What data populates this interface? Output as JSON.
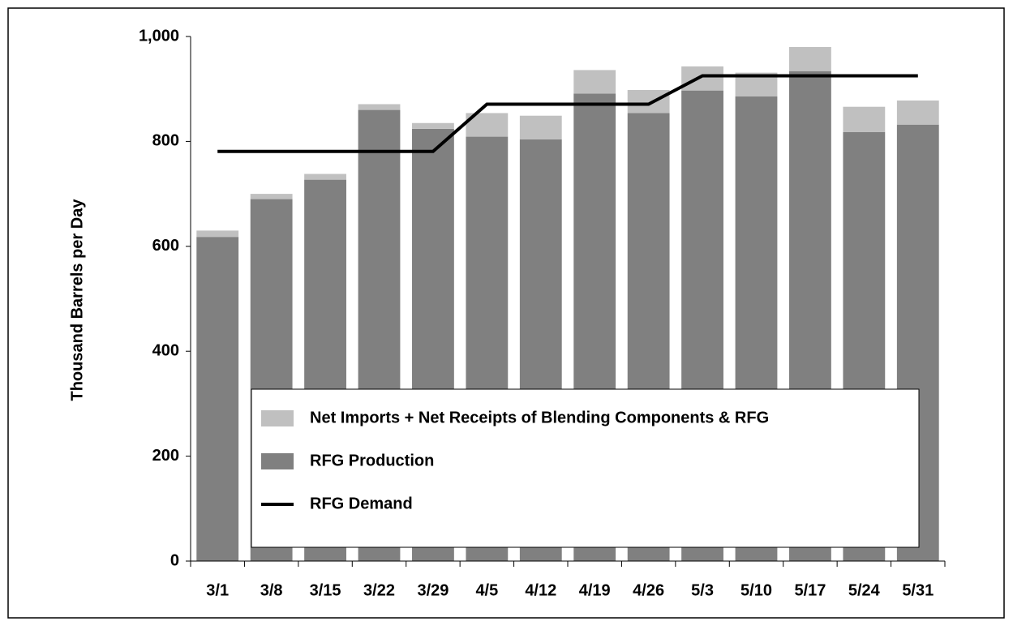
{
  "chart_data": {
    "type": "bar",
    "y_label": "Thousand Barrels per Day",
    "categories": [
      "3/1",
      "3/8",
      "3/15",
      "3/22",
      "3/29",
      "4/5",
      "4/12",
      "4/19",
      "4/26",
      "5/3",
      "5/10",
      "5/17",
      "5/24",
      "5/31"
    ],
    "series": [
      {
        "name": "Net Imports + Net Receipts of Blending Components & RFG",
        "type": "bar",
        "color": "#c0c0c0",
        "values": [
          12,
          10,
          11,
          11,
          11,
          45,
          45,
          45,
          44,
          46,
          45,
          46,
          48,
          46
        ]
      },
      {
        "name": "RFG Production",
        "type": "bar",
        "color": "#808080",
        "values": [
          618,
          690,
          727,
          860,
          824,
          809,
          804,
          891,
          854,
          897,
          886,
          934,
          818,
          832
        ]
      },
      {
        "name": "RFG Demand",
        "type": "line",
        "color": "#000000",
        "values": [
          781,
          781,
          781,
          781,
          781,
          871,
          871,
          871,
          871,
          925,
          925,
          925,
          925,
          925
        ]
      }
    ],
    "ylim": [
      0,
      1000
    ],
    "yticks": [
      0,
      200,
      400,
      600,
      800,
      {
        "value": 1000,
        "label": "1,000"
      }
    ],
    "grid": false
  }
}
